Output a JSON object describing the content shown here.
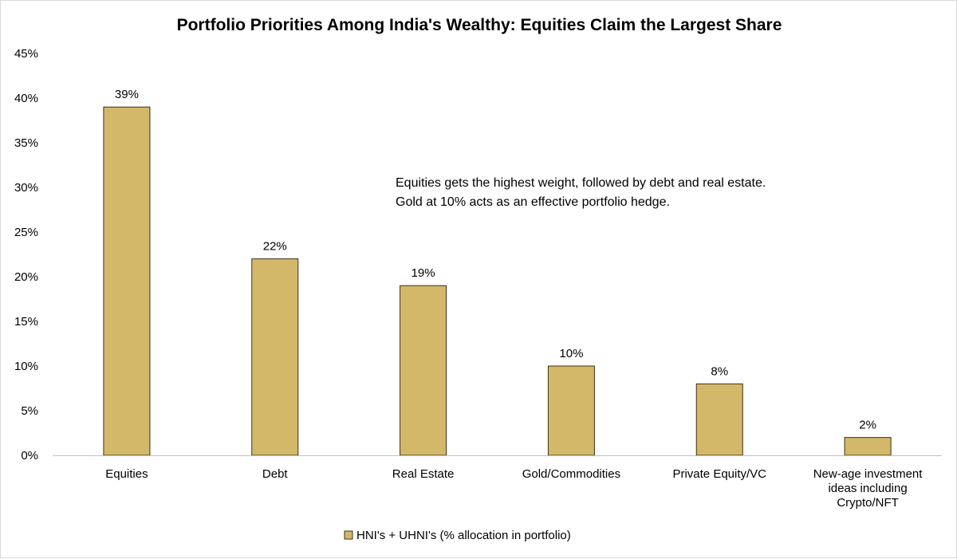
{
  "chart_data": {
    "type": "bar",
    "title": "Portfolio Priorities Among India's Wealthy: Equities Claim the Largest Share",
    "categories": [
      [
        "Equities"
      ],
      [
        "Debt"
      ],
      [
        "Real Estate"
      ],
      [
        "Gold/Commodities"
      ],
      [
        "Private Equity/VC"
      ],
      [
        "New-age investment",
        "ideas including",
        "Crypto/NFT"
      ]
    ],
    "series": [
      {
        "name": "HNI's + UHNI's (% allocation in portfolio)",
        "values": [
          39,
          22,
          19,
          10,
          8,
          2
        ],
        "color": "#d4b86a"
      }
    ],
    "data_labels": [
      "39%",
      "22%",
      "19%",
      "10%",
      "8%",
      "2%"
    ],
    "y_ticks": [
      "0%",
      "5%",
      "10%",
      "15%",
      "20%",
      "25%",
      "30%",
      "35%",
      "40%",
      "45%"
    ],
    "ylim": [
      0,
      45
    ],
    "xlabel": "",
    "ylabel": "",
    "grid": false,
    "legend_position": "bottom",
    "annotation": [
      "Equities gets the highest weight,  followed  by debt and real estate.",
      "Gold at 10% acts as an effective portfolio hedge."
    ],
    "bar_color": "#d4b86a",
    "bar_edge_color": "#3b3015"
  }
}
